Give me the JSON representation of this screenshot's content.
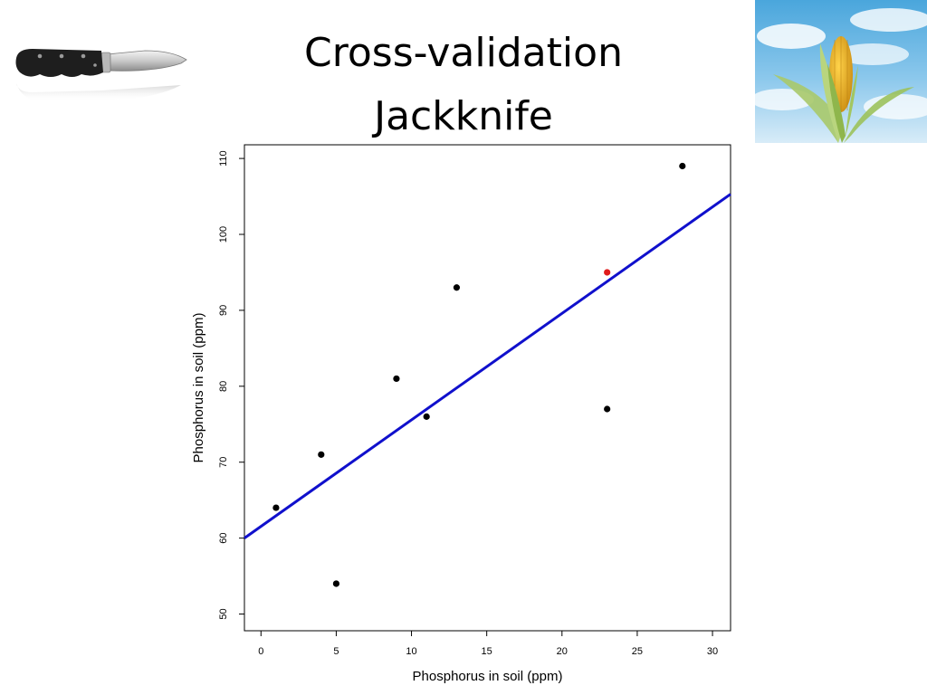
{
  "slide": {
    "title_line1": "Cross-validation",
    "title_line2": "Jackknife"
  },
  "images": {
    "left": "knife-photo",
    "right": "corn-photo"
  },
  "chart_data": {
    "type": "scatter",
    "xlabel": "Phosphorus in soil (ppm)",
    "ylabel": "Phosphorus in soil (ppm)",
    "xlim": [
      -1.1,
      31.2
    ],
    "ylim": [
      47.8,
      111.8
    ],
    "xticks": [
      0,
      5,
      10,
      15,
      20,
      25,
      30
    ],
    "yticks": [
      50,
      60,
      70,
      80,
      90,
      100,
      110
    ],
    "grid": false,
    "legend": "none",
    "points": [
      {
        "x": 1,
        "y": 64,
        "color": "#000000"
      },
      {
        "x": 4,
        "y": 71,
        "color": "#000000"
      },
      {
        "x": 5,
        "y": 54,
        "color": "#000000"
      },
      {
        "x": 9,
        "y": 81,
        "color": "#000000"
      },
      {
        "x": 11,
        "y": 76,
        "color": "#000000"
      },
      {
        "x": 13,
        "y": 93,
        "color": "#000000"
      },
      {
        "x": 23,
        "y": 77,
        "color": "#000000"
      },
      {
        "x": 23,
        "y": 95,
        "color": "#e01b1b"
      },
      {
        "x": 28,
        "y": 109,
        "color": "#000000"
      }
    ],
    "fit_line": {
      "x1": -1.1,
      "y1": 60.0,
      "x2": 31.2,
      "y2": 105.3,
      "color": "#1010cc"
    }
  }
}
